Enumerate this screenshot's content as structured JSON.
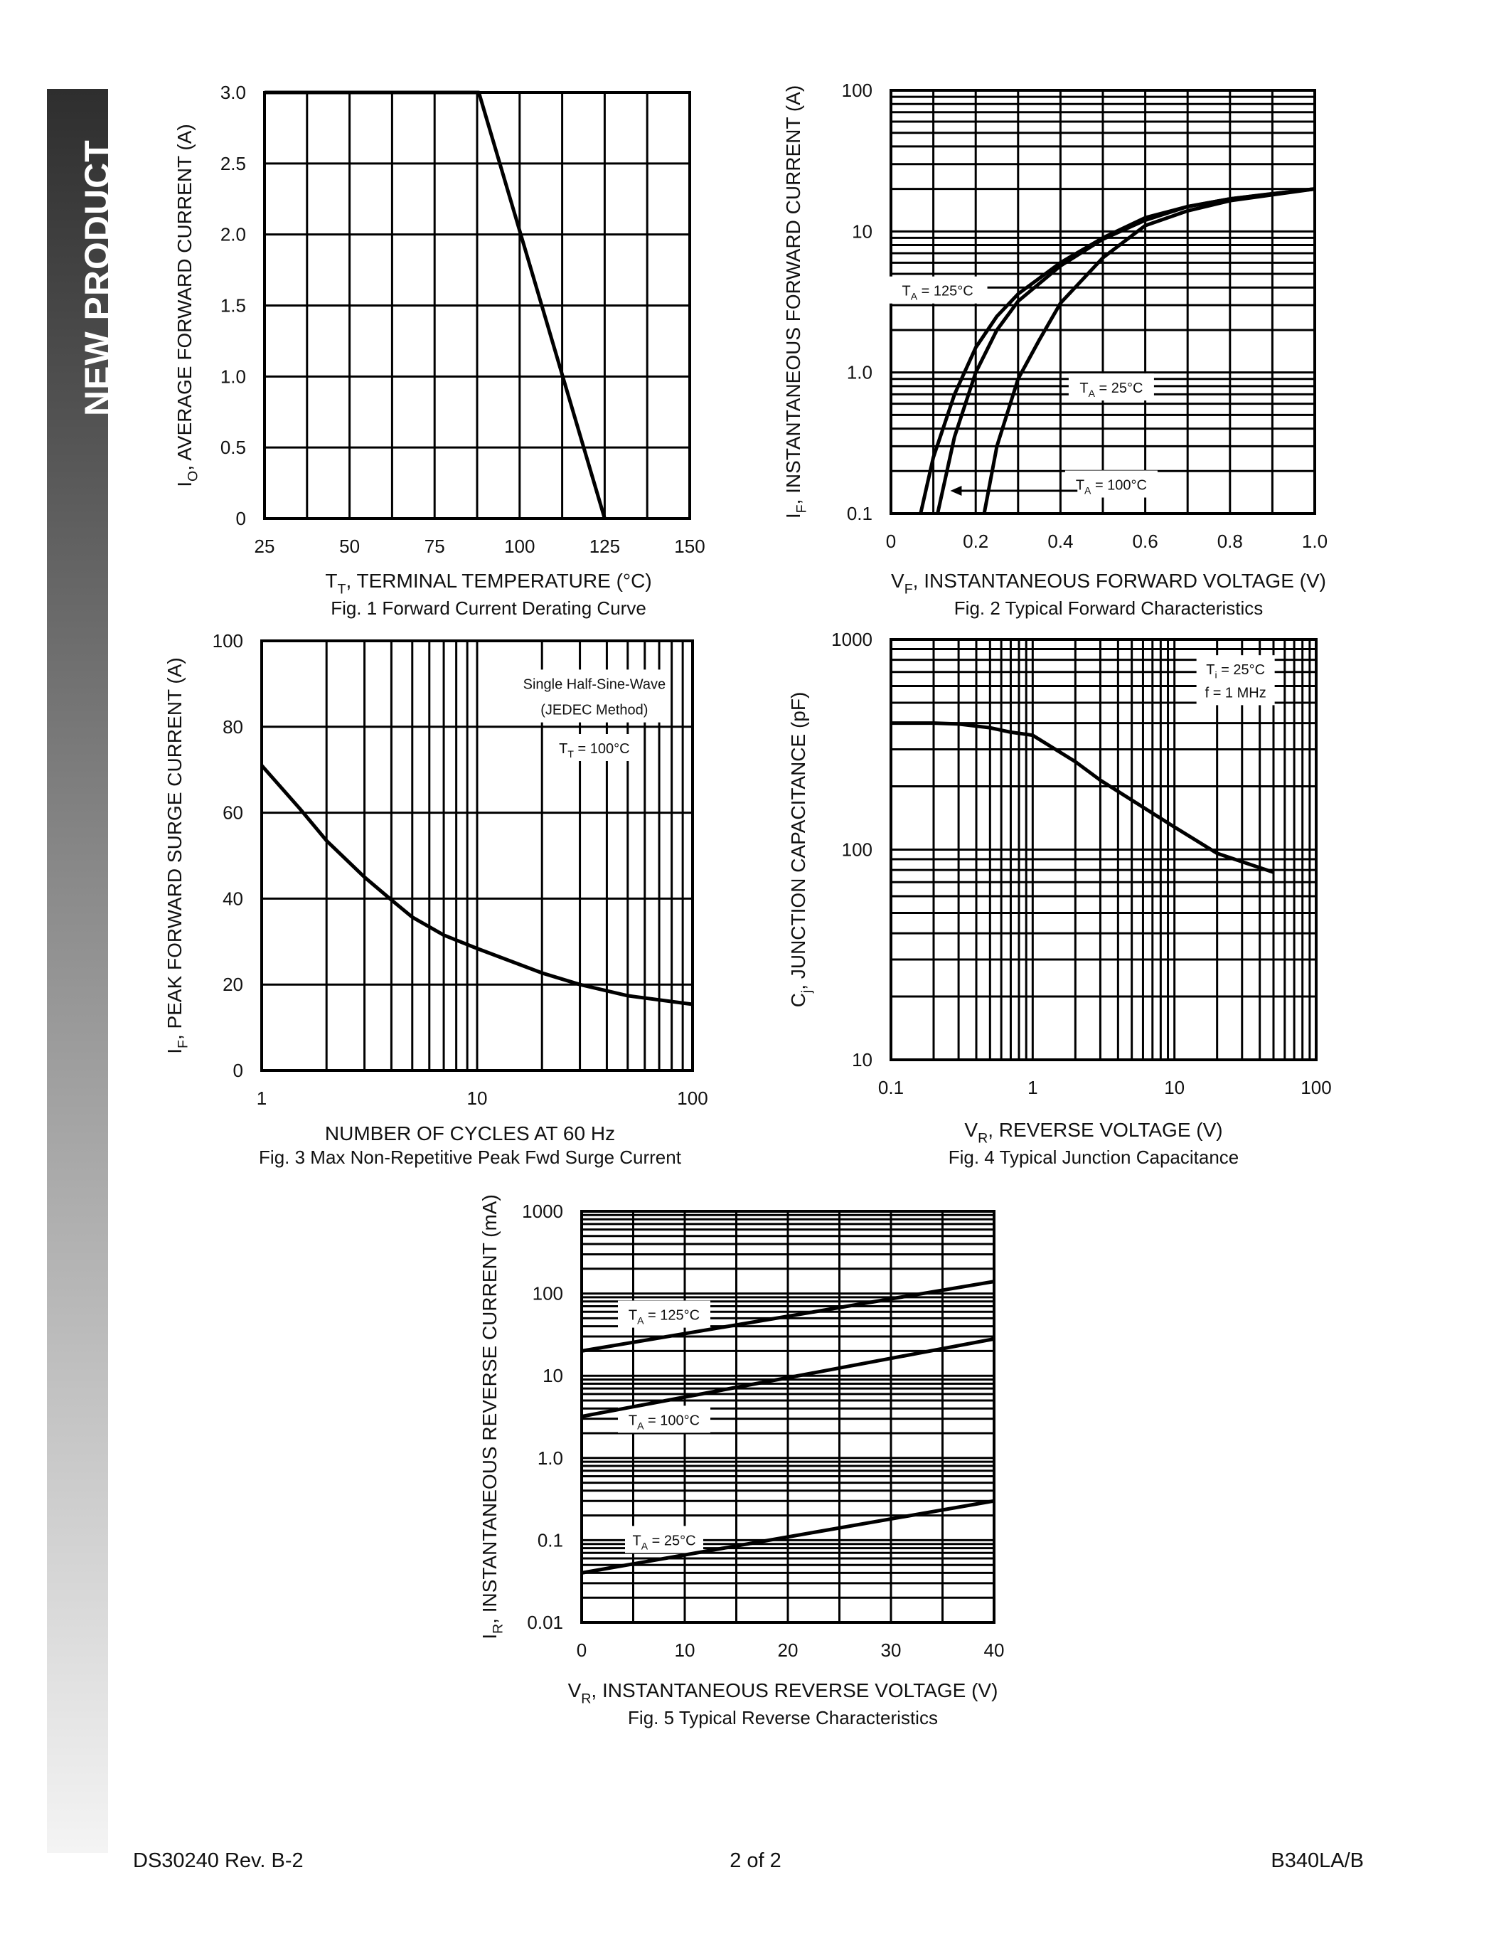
{
  "sidebar": {
    "label": "NEW PRODUCT"
  },
  "footer": {
    "left": "DS30240 Rev. B-2",
    "center": "2 of 2",
    "right": "B340LA/B"
  },
  "chart_data": [
    {
      "type": "line",
      "caption": "Fig. 1  Forward Current Derating Curve",
      "xlabel": {
        "main": "T",
        "sub": "T",
        "rest": ",  TERMINAL TEMPERATURE (°C)"
      },
      "ylabel": {
        "main": "I",
        "sub": "O",
        "rest": ", AVERAGE FORWARD CURRENT (A)"
      },
      "xscale": "linear",
      "yscale": "linear",
      "xlim": [
        25,
        150
      ],
      "ylim": [
        0,
        3.0
      ],
      "xgrid_step": 12.5,
      "ygrid_step": 0.5,
      "grid": true,
      "xticks": [
        {
          "v": 25,
          "label": "25"
        },
        {
          "v": 50,
          "label": "50"
        },
        {
          "v": 75,
          "label": "75"
        },
        {
          "v": 100,
          "label": "100"
        },
        {
          "v": 125,
          "label": "125"
        },
        {
          "v": 150,
          "label": "150"
        }
      ],
      "yticks": [
        {
          "v": 0,
          "label": "0"
        },
        {
          "v": 0.5,
          "label": "0.5"
        },
        {
          "v": 1.0,
          "label": "1.0"
        },
        {
          "v": 1.5,
          "label": "1.5"
        },
        {
          "v": 2.0,
          "label": "2.0"
        },
        {
          "v": 2.5,
          "label": "2.5"
        },
        {
          "v": 3.0,
          "label": "3.0"
        }
      ],
      "series": [
        {
          "points": [
            [
              25,
              3.0
            ],
            [
              88,
              3.0
            ],
            [
              125,
              0
            ]
          ]
        }
      ],
      "annotations": []
    },
    {
      "type": "line",
      "caption": "Fig. 2  Typical Forward Characteristics",
      "xlabel": {
        "main": "V",
        "sub": "F",
        "rest": ", INSTANTANEOUS FORWARD VOLTAGE (V)"
      },
      "ylabel": {
        "main": "I",
        "sub": "F",
        "rest": ", INSTANTANEOUS FORWARD CURRENT (A)"
      },
      "xscale": "linear",
      "yscale": "log",
      "xlim": [
        0,
        1.0
      ],
      "ylim": [
        0.1,
        100
      ],
      "xgrid_step": 0.1,
      "grid": true,
      "xticks": [
        {
          "v": 0,
          "label": "0"
        },
        {
          "v": 0.2,
          "label": "0.2"
        },
        {
          "v": 0.4,
          "label": "0.4"
        },
        {
          "v": 0.6,
          "label": "0.6"
        },
        {
          "v": 0.8,
          "label": "0.8"
        },
        {
          "v": 1.0,
          "label": "1.0"
        }
      ],
      "yticks": [
        {
          "v": 0.1,
          "label": "0.1"
        },
        {
          "v": 1,
          "label": "1.0"
        },
        {
          "v": 10,
          "label": "10"
        },
        {
          "v": 100,
          "label": "100"
        }
      ],
      "series": [
        {
          "name": "TA = 125°C",
          "points": [
            [
              0.07,
              0.1
            ],
            [
              0.1,
              0.25
            ],
            [
              0.15,
              0.7
            ],
            [
              0.2,
              1.5
            ],
            [
              0.25,
              2.5
            ],
            [
              0.3,
              3.6
            ],
            [
              0.4,
              6
            ],
            [
              0.5,
              9
            ],
            [
              0.6,
              12.5
            ],
            [
              0.7,
              15
            ],
            [
              0.8,
              17
            ],
            [
              0.9,
              18.5
            ],
            [
              1.0,
              20
            ]
          ]
        },
        {
          "name": "TA = 100°C",
          "points": [
            [
              0.11,
              0.1
            ],
            [
              0.15,
              0.35
            ],
            [
              0.2,
              1.0
            ],
            [
              0.25,
              2.0
            ],
            [
              0.3,
              3.2
            ],
            [
              0.4,
              5.7
            ],
            [
              0.5,
              8.8
            ],
            [
              0.6,
              12
            ],
            [
              0.7,
              15
            ],
            [
              0.8,
              17
            ],
            [
              1.0,
              20
            ]
          ]
        },
        {
          "name": "TA = 25°C",
          "points": [
            [
              0.22,
              0.1
            ],
            [
              0.25,
              0.3
            ],
            [
              0.3,
              0.9
            ],
            [
              0.35,
              1.7
            ],
            [
              0.4,
              3.1
            ],
            [
              0.5,
              6.5
            ],
            [
              0.6,
              11
            ],
            [
              0.7,
              14
            ],
            [
              0.8,
              16.5
            ],
            [
              1.0,
              20
            ]
          ]
        }
      ],
      "annotations": [
        {
          "main": "T",
          "sub": "A",
          "rest": " = 125°C"
        },
        {
          "main": "T",
          "sub": "A",
          "rest": " = 25°C"
        },
        {
          "main": "T",
          "sub": "A",
          "rest": " = 100°C"
        }
      ]
    },
    {
      "type": "line",
      "caption": "Fig. 3  Max Non-Repetitive Peak Fwd Surge Current",
      "xlabel": {
        "main": "NUMBER OF CYCLES AT 60 Hz",
        "sub": "",
        "rest": ""
      },
      "ylabel": {
        "main": "I",
        "sub": "F",
        "rest": ", PEAK FORWARD SURGE CURRENT (A)"
      },
      "xscale": "log",
      "yscale": "linear",
      "xlim": [
        1,
        100
      ],
      "ylim": [
        0,
        100
      ],
      "ygrid_step": 20,
      "grid": true,
      "xticks": [
        {
          "v": 1,
          "label": "1"
        },
        {
          "v": 10,
          "label": "10"
        },
        {
          "v": 100,
          "label": "100"
        }
      ],
      "yticks": [
        {
          "v": 0,
          "label": "0"
        },
        {
          "v": 20,
          "label": "20"
        },
        {
          "v": 40,
          "label": "40"
        },
        {
          "v": 60,
          "label": "60"
        },
        {
          "v": 80,
          "label": "80"
        },
        {
          "v": 100,
          "label": "100"
        }
      ],
      "series": [
        {
          "points": [
            [
              1,
              71
            ],
            [
              1.5,
              61
            ],
            [
              2,
              53.5
            ],
            [
              3,
              45
            ],
            [
              4,
              39.7
            ],
            [
              5,
              35.7
            ],
            [
              7,
              31.5
            ],
            [
              10,
              28.4
            ],
            [
              20,
              22.7
            ],
            [
              30,
              20
            ],
            [
              50,
              17.4
            ],
            [
              100,
              15.4
            ]
          ]
        }
      ],
      "annotations": [
        {
          "main": "Single Half-Sine-Wave",
          "sub": "",
          "rest": ""
        },
        {
          "main": "(JEDEC Method)",
          "sub": "",
          "rest": ""
        },
        {
          "main": "T",
          "sub": "T",
          "rest": " = 100°C"
        }
      ]
    },
    {
      "type": "line",
      "caption": "Fig. 4  Typical Junction Capacitance",
      "xlabel": {
        "main": "V",
        "sub": "R",
        "rest": ", REVERSE VOLTAGE (V)"
      },
      "ylabel": {
        "main": "C",
        "sub": "j",
        "rest": ", JUNCTION CAPACITANCE (pF)"
      },
      "xscale": "log",
      "yscale": "log",
      "xlim": [
        0.1,
        100
      ],
      "ylim": [
        10,
        1000
      ],
      "grid": true,
      "xticks": [
        {
          "v": 0.1,
          "label": "0.1"
        },
        {
          "v": 1,
          "label": "1"
        },
        {
          "v": 10,
          "label": "10"
        },
        {
          "v": 100,
          "label": "100"
        }
      ],
      "yticks": [
        {
          "v": 10,
          "label": "10"
        },
        {
          "v": 100,
          "label": "100"
        },
        {
          "v": 1000,
          "label": "1000"
        }
      ],
      "series": [
        {
          "points": [
            [
              0.1,
              400
            ],
            [
              0.2,
              400
            ],
            [
              0.3,
              396
            ],
            [
              0.5,
              380
            ],
            [
              0.7,
              362
            ],
            [
              1,
              350
            ],
            [
              2,
              262
            ],
            [
              3,
              214
            ],
            [
              5,
              172
            ],
            [
              10,
              128
            ],
            [
              20,
              96
            ],
            [
              50,
              78
            ]
          ]
        }
      ],
      "annotations": [
        {
          "main": "T",
          "sub": "j",
          "rest": " = 25°C"
        },
        {
          "main": "f = 1 MHz",
          "sub": "",
          "rest": ""
        }
      ]
    },
    {
      "type": "line",
      "caption": "Fig. 5  Typical Reverse Characteristics",
      "xlabel": {
        "main": "V",
        "sub": "R",
        "rest": ", INSTANTANEOUS REVERSE VOLTAGE (V)"
      },
      "ylabel": {
        "main": "I",
        "sub": "R",
        "rest": ", INSTANTANEOUS REVERSE CURRENT (mA)"
      },
      "xscale": "linear",
      "yscale": "log",
      "xlim": [
        0,
        40
      ],
      "ylim": [
        0.01,
        1000
      ],
      "xgrid_step": 5,
      "grid": true,
      "xticks": [
        {
          "v": 0,
          "label": "0"
        },
        {
          "v": 10,
          "label": "10"
        },
        {
          "v": 20,
          "label": "20"
        },
        {
          "v": 30,
          "label": "30"
        },
        {
          "v": 40,
          "label": "40"
        }
      ],
      "yticks": [
        {
          "v": 0.01,
          "label": "0.01"
        },
        {
          "v": 0.1,
          "label": "0.1"
        },
        {
          "v": 1,
          "label": "1.0"
        },
        {
          "v": 10,
          "label": "10"
        },
        {
          "v": 100,
          "label": "100"
        },
        {
          "v": 1000,
          "label": "1000"
        }
      ],
      "series": [
        {
          "name": "TA = 125°C",
          "points": [
            [
              0,
              20
            ],
            [
              40,
              140
            ]
          ]
        },
        {
          "name": "TA = 100°C",
          "points": [
            [
              0,
              3.2
            ],
            [
              40,
              28
            ]
          ]
        },
        {
          "name": "TA = 25°C",
          "points": [
            [
              0,
              0.04
            ],
            [
              40,
              0.3
            ]
          ]
        }
      ],
      "annotations": [
        {
          "main": "T",
          "sub": "A",
          "rest": " = 125°C"
        },
        {
          "main": "T",
          "sub": "A",
          "rest": " = 100°C"
        },
        {
          "main": "T",
          "sub": "A",
          "rest": " = 25°C"
        }
      ]
    }
  ]
}
